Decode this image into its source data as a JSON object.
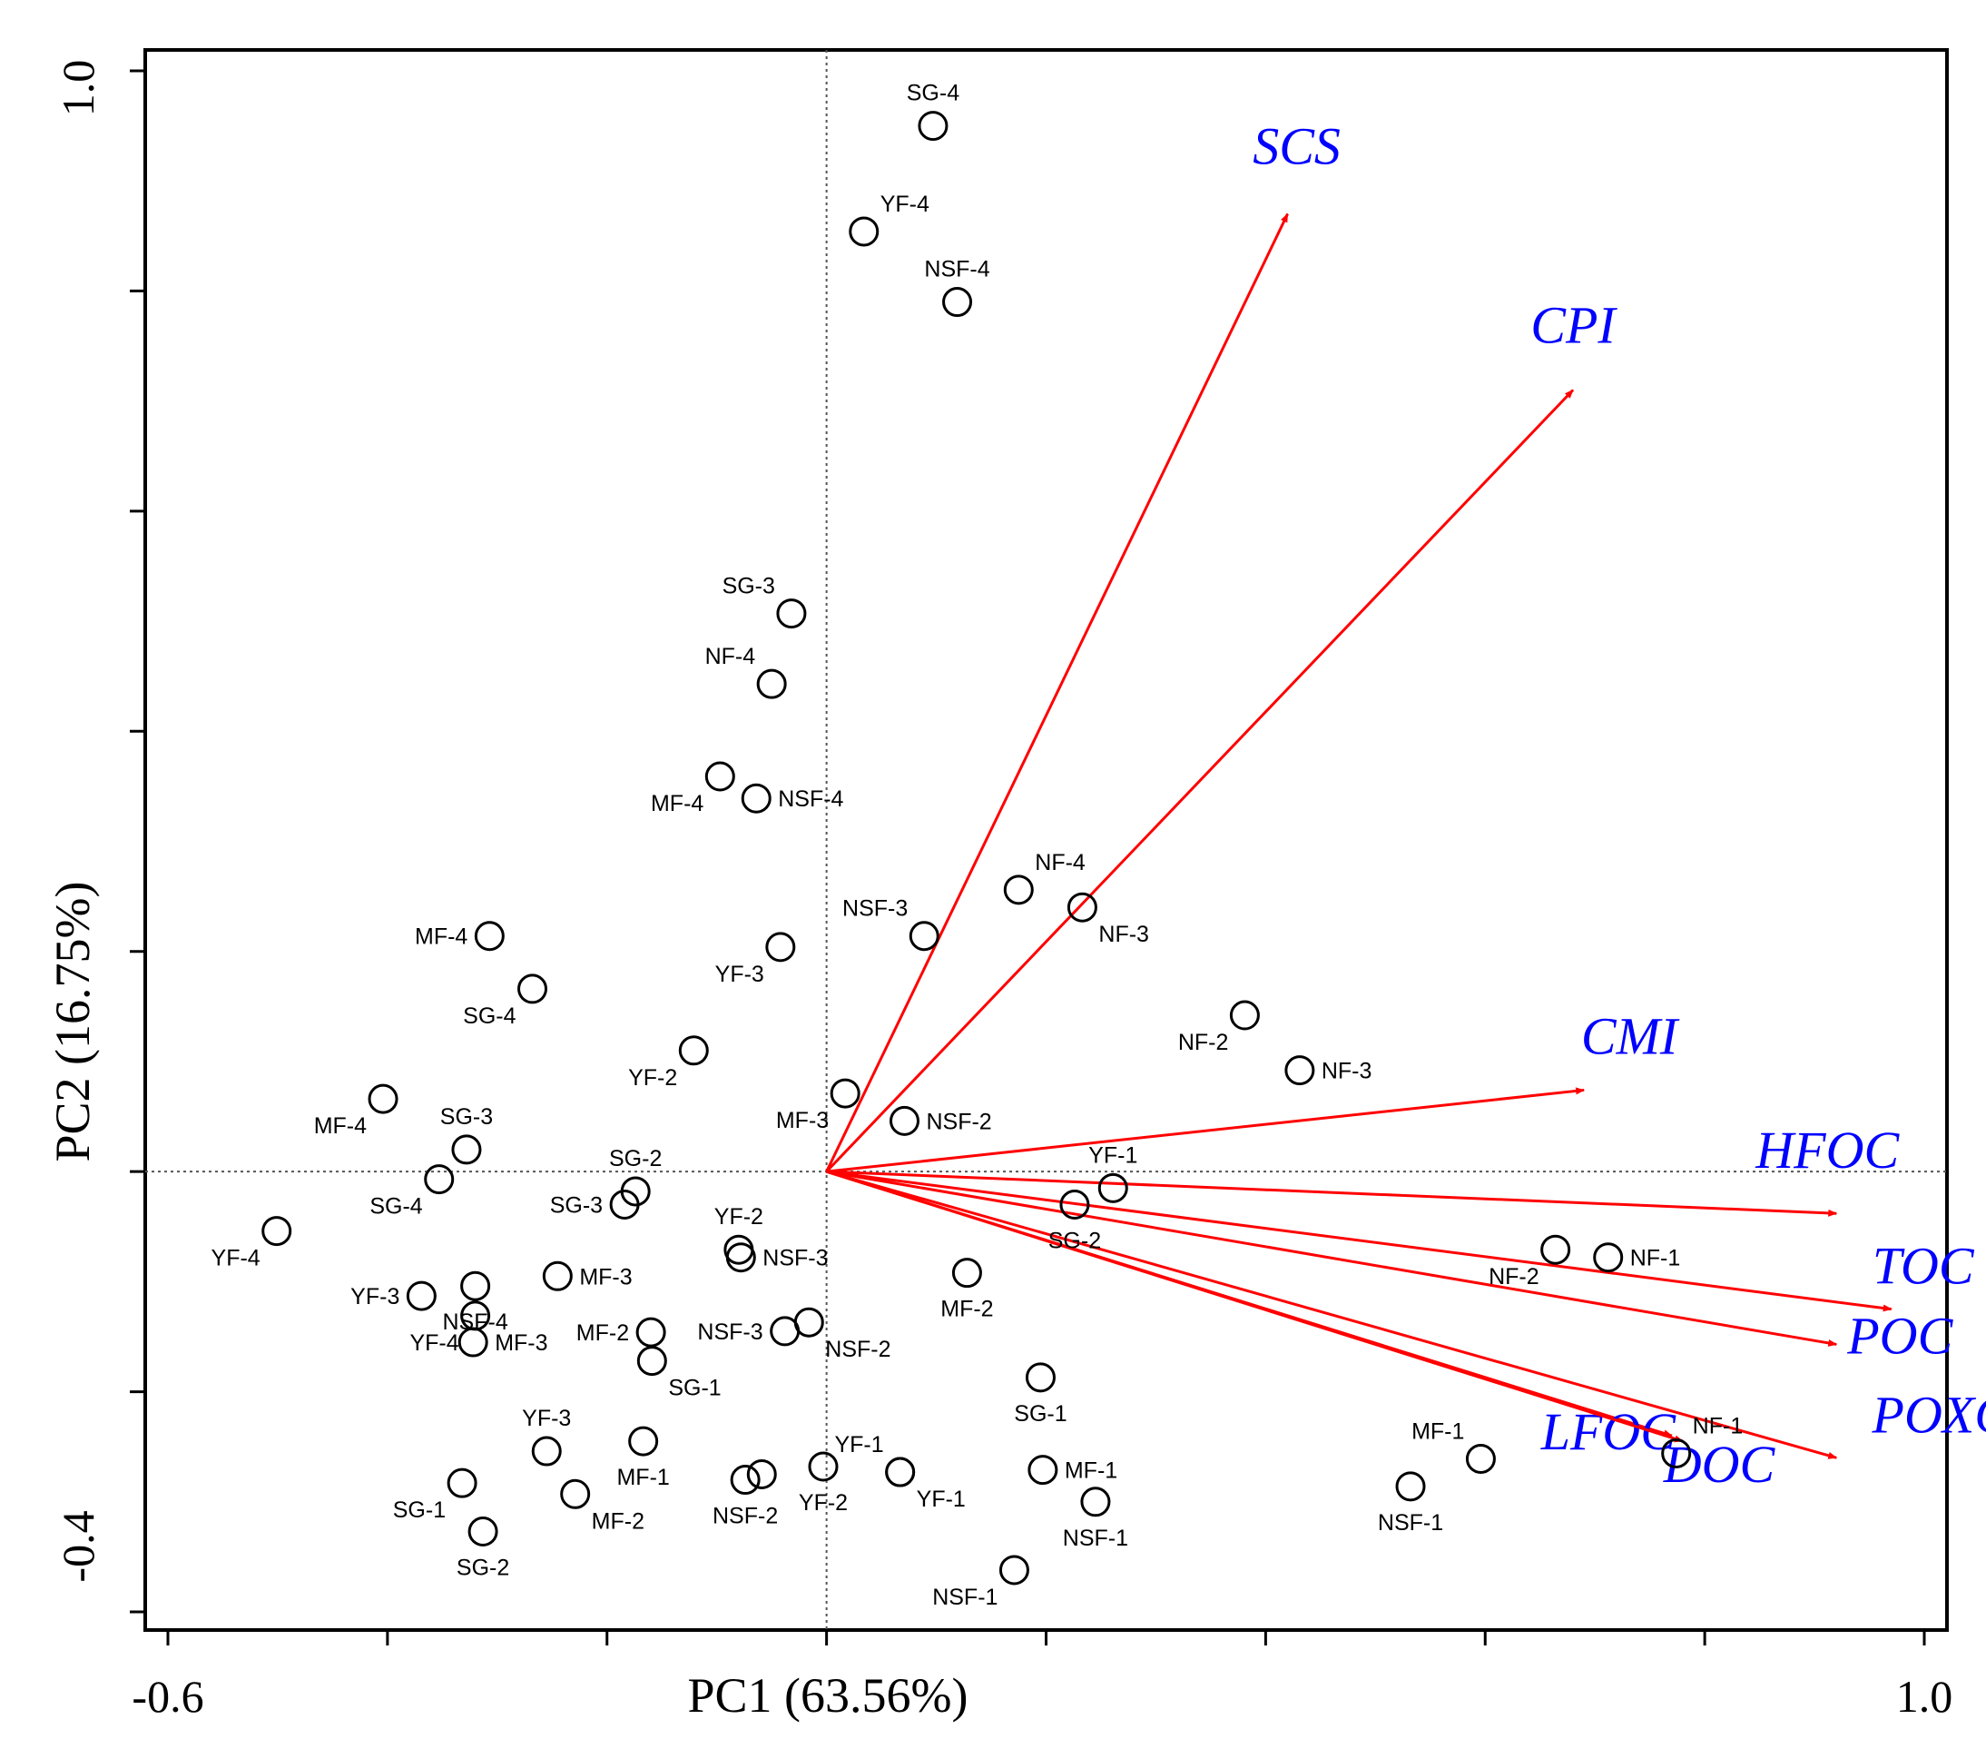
{
  "chart_data": {
    "type": "scatter",
    "subtype": "PCA biplot",
    "xlabel": "PC1 (63.56%)",
    "ylabel": "PC2 (16.75%)",
    "xlim": [
      -0.6,
      1.0
    ],
    "ylim": [
      -0.4,
      1.0
    ],
    "x_tick_labels": [
      "-0.6",
      "1.0"
    ],
    "y_tick_labels": [
      "-0.4",
      "1.0"
    ],
    "x_ticks": [
      -0.6,
      -0.4,
      -0.2,
      0.0,
      0.2,
      0.4,
      0.6,
      0.8,
      1.0
    ],
    "y_ticks": [
      -0.4,
      -0.2,
      0.0,
      0.2,
      0.4,
      0.6,
      0.8,
      1.0
    ],
    "reference_lines": {
      "x": 0,
      "y": 0,
      "style": "dotted"
    },
    "colors": {
      "arrow": "#ff0000",
      "variable_label": "#0000ff",
      "point": "#000000"
    },
    "variables": [
      {
        "name": "SCS",
        "x": 0.42,
        "y": 0.87
      },
      {
        "name": "CPI",
        "x": 0.68,
        "y": 0.71
      },
      {
        "name": "CMI",
        "x": 0.69,
        "y": 0.074
      },
      {
        "name": "HFOC",
        "x": 0.92,
        "y": -0.038
      },
      {
        "name": "TOC",
        "x": 0.97,
        "y": -0.125
      },
      {
        "name": "POC",
        "x": 0.92,
        "y": -0.157
      },
      {
        "name": "POXC",
        "x": 0.92,
        "y": -0.26
      },
      {
        "name": "LFOC",
        "x": 0.77,
        "y": -0.24
      },
      {
        "name": "DOC",
        "x": 0.78,
        "y": -0.245
      }
    ],
    "points": [
      {
        "label": "SG-4",
        "x": 0.097,
        "y": 0.95,
        "label_pos": "top"
      },
      {
        "label": "YF-4",
        "x": 0.034,
        "y": 0.854,
        "label_pos": "topright"
      },
      {
        "label": "NSF-4",
        "x": 0.119,
        "y": 0.79,
        "label_pos": "top"
      },
      {
        "label": "SG-3",
        "x": -0.032,
        "y": 0.507,
        "label_pos": "topleft"
      },
      {
        "label": "NF-4",
        "x": -0.05,
        "y": 0.443,
        "label_pos": "topleft"
      },
      {
        "label": "MF-4",
        "x": -0.097,
        "y": 0.359,
        "label_pos": "bottomleft"
      },
      {
        "label": "NSF-4",
        "x": -0.064,
        "y": 0.339,
        "label_pos": "right"
      },
      {
        "label": "NF-4",
        "x": 0.175,
        "y": 0.256,
        "label_pos": "topright"
      },
      {
        "label": "NF-3",
        "x": 0.233,
        "y": 0.24,
        "label_pos": "bottomright"
      },
      {
        "label": "NSF-3",
        "x": 0.089,
        "y": 0.214,
        "label_pos": "topleft"
      },
      {
        "label": "YF-3",
        "x": -0.042,
        "y": 0.204,
        "label_pos": "bottomleft"
      },
      {
        "label": "MF-4",
        "x": -0.307,
        "y": 0.214,
        "label_pos": "left"
      },
      {
        "label": "SG-4",
        "x": -0.268,
        "y": 0.166,
        "label_pos": "bottomleft"
      },
      {
        "label": "YF-2",
        "x": -0.121,
        "y": 0.11,
        "label_pos": "bottomleft"
      },
      {
        "label": "NF-2",
        "x": 0.381,
        "y": 0.142,
        "label_pos": "bottomleft"
      },
      {
        "label": "NF-3",
        "x": 0.431,
        "y": 0.092,
        "label_pos": "right"
      },
      {
        "label": "MF-3",
        "x": 0.017,
        "y": 0.071,
        "label_pos": "bottomleft"
      },
      {
        "label": "NSF-2",
        "x": 0.071,
        "y": 0.046,
        "label_pos": "right"
      },
      {
        "label": "MF-4",
        "x": -0.404,
        "y": 0.066,
        "label_pos": "bottomleft"
      },
      {
        "label": "SG-3",
        "x": -0.328,
        "y": 0.02,
        "label_pos": "top"
      },
      {
        "label": "SG-4",
        "x": -0.353,
        "y": -0.007,
        "label_pos": "bottomleft"
      },
      {
        "label": "SG-2",
        "x": -0.174,
        "y": -0.018,
        "label_pos": "top"
      },
      {
        "label": "SG-3",
        "x": -0.184,
        "y": -0.03,
        "label_pos": "left"
      },
      {
        "label": "YF-1",
        "x": 0.261,
        "y": -0.015,
        "label_pos": "top"
      },
      {
        "label": "SG-2",
        "x": 0.226,
        "y": -0.03,
        "label_pos": "bottom"
      },
      {
        "label": "YF-4",
        "x": -0.501,
        "y": -0.054,
        "label_pos": "bottomleft"
      },
      {
        "label": "YF-2",
        "x": -0.08,
        "y": -0.071,
        "label_pos": "top"
      },
      {
        "label": "NSF-3",
        "x": -0.078,
        "y": -0.078,
        "label_pos": "right"
      },
      {
        "label": "NF-2",
        "x": 0.664,
        "y": -0.071,
        "label_pos": "bottomleft"
      },
      {
        "label": "NF-1",
        "x": 0.712,
        "y": -0.078,
        "label_pos": "right"
      },
      {
        "label": "YF-3",
        "x": -0.369,
        "y": -0.113,
        "label_pos": "left"
      },
      {
        "label": "NSF-4",
        "x": -0.32,
        "y": -0.104,
        "label_pos": "bottom"
      },
      {
        "label": "MF-3",
        "x": -0.245,
        "y": -0.095,
        "label_pos": "right"
      },
      {
        "label": "MF-2",
        "x": 0.128,
        "y": -0.092,
        "label_pos": "bottom"
      },
      {
        "label": "MF-3",
        "x": -0.322,
        "y": -0.155,
        "label_pos": "right"
      },
      {
        "label": "YF-4",
        "x": -0.32,
        "y": -0.131,
        "label_pos": "bottomleft"
      },
      {
        "label": "MF-2",
        "x": -0.16,
        "y": -0.146,
        "label_pos": "left"
      },
      {
        "label": "NSF-3",
        "x": -0.038,
        "y": -0.145,
        "label_pos": "left"
      },
      {
        "label": "NSF-2",
        "x": -0.016,
        "y": -0.137,
        "label_pos": "bottomright"
      },
      {
        "label": "SG-1",
        "x": -0.159,
        "y": -0.172,
        "label_pos": "bottomright"
      },
      {
        "label": "SG-1",
        "x": 0.195,
        "y": -0.187,
        "label_pos": "bottom"
      },
      {
        "label": "YF-3",
        "x": -0.255,
        "y": -0.254,
        "label_pos": "top"
      },
      {
        "label": "MF-1",
        "x": -0.167,
        "y": -0.245,
        "label_pos": "bottom"
      },
      {
        "label": "YF-1",
        "x": 0.067,
        "y": -0.273,
        "label_pos": "topleft"
      },
      {
        "label": "YF-1",
        "x": 0.067,
        "y": -0.273,
        "label_pos": "bottomright"
      },
      {
        "label": "YF-2",
        "x": -0.003,
        "y": -0.268,
        "label_pos": "bottom"
      },
      {
        "label": "NSF-2",
        "x": -0.074,
        "y": -0.28,
        "label_pos": "bottom"
      },
      {
        "label": "NSF-2",
        "x": -0.059,
        "y": -0.275,
        "label_pos": "none"
      },
      {
        "label": "MF-1",
        "x": 0.197,
        "y": -0.271,
        "label_pos": "right"
      },
      {
        "label": "NSF-1",
        "x": 0.245,
        "y": -0.3,
        "label_pos": "bottom"
      },
      {
        "label": "SG-1",
        "x": -0.332,
        "y": -0.283,
        "label_pos": "bottomleft"
      },
      {
        "label": "SG-2",
        "x": -0.313,
        "y": -0.327,
        "label_pos": "bottom"
      },
      {
        "label": "MF-2",
        "x": -0.229,
        "y": -0.293,
        "label_pos": "bottomright"
      },
      {
        "label": "NSF-1",
        "x": 0.171,
        "y": -0.362,
        "label_pos": "bottomleft"
      },
      {
        "label": "MF-1",
        "x": 0.596,
        "y": -0.261,
        "label_pos": "topleft"
      },
      {
        "label": "NSF-1",
        "x": 0.532,
        "y": -0.286,
        "label_pos": "bottom"
      },
      {
        "label": "NF-1",
        "x": 0.774,
        "y": -0.256,
        "label_pos": "topright"
      }
    ]
  }
}
